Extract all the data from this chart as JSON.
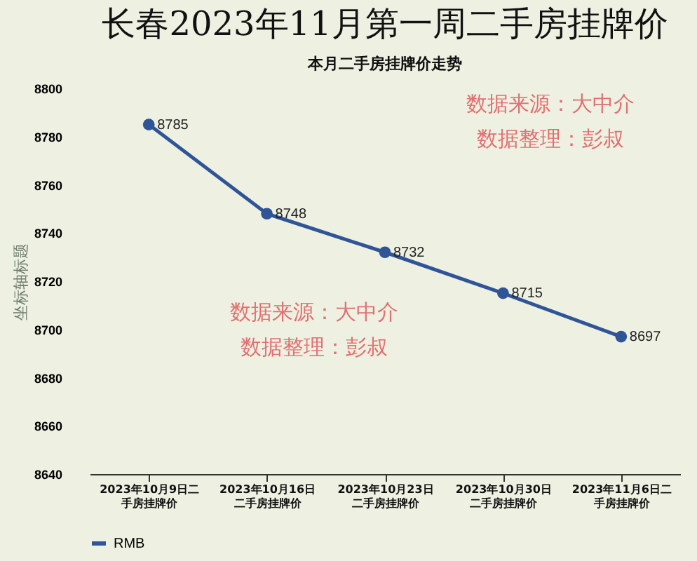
{
  "chart_data": {
    "type": "line",
    "title": "长春2023年11月第一周二手房挂牌价",
    "subtitle": "本月二手房挂牌价走势",
    "ylabel": "坐标轴标题",
    "categories": [
      "2023年10月9日二手房挂牌价",
      "2023年10月16日二手房挂牌价",
      "2023年10月23日二手房挂牌价",
      "2023年10月30日二手房挂牌价",
      "2023年11月6日二手房挂牌价"
    ],
    "series": [
      {
        "name": "RMB",
        "color": "#2f5597",
        "values": [
          8785,
          8748,
          8732,
          8715,
          8697
        ]
      }
    ],
    "ylim": [
      8640,
      8800
    ],
    "yticks": [
      8640,
      8660,
      8680,
      8700,
      8720,
      8740,
      8760,
      8780,
      8800
    ],
    "annotations": [
      "数据来源：大中介",
      "数据整理：彭叔",
      "数据来源：大中介",
      "数据整理：彭叔"
    ],
    "data_labels": true,
    "marker": "circle",
    "grid": false,
    "legend": "bottom"
  }
}
